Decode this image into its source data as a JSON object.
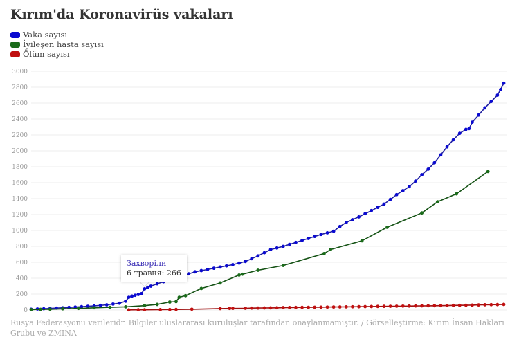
{
  "chart_data": {
    "type": "line",
    "title": "Kırım'da Koronavirüs vakaları",
    "xlabel": "",
    "ylabel": "",
    "ylim": [
      0,
      3000
    ],
    "xlim": [
      0,
      150
    ],
    "yticks": [
      "0",
      "200",
      "400",
      "600",
      "800",
      "1000",
      "1200",
      "1400",
      "1600",
      "1800",
      "2000",
      "2200",
      "2400",
      "2600",
      "2800",
      "3000"
    ],
    "grid": true,
    "legend_position": "top-left",
    "series": [
      {
        "name": "Vaka sayısı",
        "color": "#0a0ad0",
        "line_color": "#2020a0",
        "points": [
          [
            0,
            10
          ],
          [
            2,
            13
          ],
          [
            4,
            16
          ],
          [
            6,
            20
          ],
          [
            8,
            24
          ],
          [
            10,
            28
          ],
          [
            12,
            32
          ],
          [
            14,
            37
          ],
          [
            16,
            42
          ],
          [
            18,
            47
          ],
          [
            20,
            52
          ],
          [
            22,
            58
          ],
          [
            24,
            65
          ],
          [
            26,
            75
          ],
          [
            28,
            85
          ],
          [
            30,
            110
          ],
          [
            31,
            160
          ],
          [
            32,
            175
          ],
          [
            33,
            185
          ],
          [
            34,
            195
          ],
          [
            35,
            205
          ],
          [
            36,
            266
          ],
          [
            37,
            285
          ],
          [
            38,
            300
          ],
          [
            40,
            330
          ],
          [
            42,
            355
          ],
          [
            44,
            380
          ],
          [
            46,
            405
          ],
          [
            48,
            430
          ],
          [
            50,
            455
          ],
          [
            52,
            480
          ],
          [
            54,
            495
          ],
          [
            56,
            510
          ],
          [
            58,
            525
          ],
          [
            60,
            540
          ],
          [
            62,
            555
          ],
          [
            64,
            570
          ],
          [
            66,
            590
          ],
          [
            68,
            610
          ],
          [
            70,
            645
          ],
          [
            72,
            680
          ],
          [
            74,
            720
          ],
          [
            76,
            760
          ],
          [
            78,
            780
          ],
          [
            80,
            800
          ],
          [
            82,
            825
          ],
          [
            84,
            850
          ],
          [
            86,
            875
          ],
          [
            88,
            900
          ],
          [
            90,
            925
          ],
          [
            92,
            950
          ],
          [
            94,
            970
          ],
          [
            96,
            990
          ],
          [
            98,
            1050
          ],
          [
            100,
            1100
          ],
          [
            102,
            1135
          ],
          [
            104,
            1170
          ],
          [
            106,
            1210
          ],
          [
            108,
            1250
          ],
          [
            110,
            1290
          ],
          [
            112,
            1330
          ],
          [
            114,
            1390
          ],
          [
            116,
            1450
          ],
          [
            118,
            1500
          ],
          [
            120,
            1550
          ],
          [
            122,
            1620
          ],
          [
            124,
            1700
          ],
          [
            126,
            1770
          ],
          [
            128,
            1850
          ],
          [
            130,
            1950
          ],
          [
            132,
            2050
          ],
          [
            134,
            2140
          ],
          [
            136,
            2220
          ],
          [
            138,
            2270
          ],
          [
            139,
            2280
          ],
          [
            140,
            2360
          ],
          [
            142,
            2450
          ],
          [
            144,
            2540
          ],
          [
            146,
            2620
          ],
          [
            148,
            2700
          ],
          [
            149,
            2770
          ],
          [
            150,
            2850
          ]
        ]
      },
      {
        "name": "İyileşen hasta sayısı",
        "color": "#1a6b1a",
        "line_color": "#145214",
        "points": [
          [
            0,
            5
          ],
          [
            3,
            8
          ],
          [
            6,
            10
          ],
          [
            10,
            15
          ],
          [
            15,
            20
          ],
          [
            20,
            28
          ],
          [
            25,
            34
          ],
          [
            30,
            40
          ],
          [
            36,
            55
          ],
          [
            40,
            70
          ],
          [
            44,
            100
          ],
          [
            46,
            105
          ],
          [
            47,
            160
          ],
          [
            49,
            180
          ],
          [
            54,
            270
          ],
          [
            60,
            340
          ],
          [
            66,
            440
          ],
          [
            67,
            450
          ],
          [
            72,
            500
          ],
          [
            80,
            560
          ],
          [
            93,
            710
          ],
          [
            95,
            760
          ],
          [
            105,
            870
          ],
          [
            113,
            1040
          ],
          [
            124,
            1220
          ],
          [
            129,
            1360
          ],
          [
            135,
            1460
          ],
          [
            145,
            1740
          ]
        ]
      },
      {
        "name": "Ölüm sayısı",
        "color": "#c01010",
        "line_color": "#a01010",
        "points": [
          [
            31,
            2
          ],
          [
            34,
            3
          ],
          [
            36,
            3
          ],
          [
            41,
            5
          ],
          [
            44,
            6
          ],
          [
            46,
            7
          ],
          [
            51,
            10
          ],
          [
            60,
            18
          ],
          [
            63,
            20
          ],
          [
            64,
            20
          ],
          [
            68,
            22
          ],
          [
            70,
            24
          ],
          [
            72,
            25
          ],
          [
            74,
            26
          ],
          [
            76,
            27
          ],
          [
            78,
            28
          ],
          [
            80,
            30
          ],
          [
            82,
            31
          ],
          [
            84,
            32
          ],
          [
            86,
            33
          ],
          [
            88,
            34
          ],
          [
            90,
            35
          ],
          [
            92,
            36
          ],
          [
            94,
            37
          ],
          [
            96,
            38
          ],
          [
            98,
            39
          ],
          [
            100,
            40
          ],
          [
            102,
            41
          ],
          [
            104,
            42
          ],
          [
            106,
            43
          ],
          [
            108,
            44
          ],
          [
            110,
            45
          ],
          [
            112,
            46
          ],
          [
            114,
            47
          ],
          [
            116,
            48
          ],
          [
            118,
            49
          ],
          [
            120,
            50
          ],
          [
            122,
            51
          ],
          [
            124,
            52
          ],
          [
            126,
            53
          ],
          [
            128,
            54
          ],
          [
            130,
            55
          ],
          [
            132,
            56
          ],
          [
            134,
            58
          ],
          [
            136,
            59
          ],
          [
            138,
            60
          ],
          [
            140,
            62
          ],
          [
            142,
            64
          ],
          [
            144,
            66
          ],
          [
            146,
            67
          ],
          [
            148,
            68
          ],
          [
            150,
            70
          ]
        ]
      }
    ],
    "annotation": {
      "series": "Vaka sayısı",
      "x": 36,
      "title": "Захворіли",
      "label": "6 травня:",
      "value": "266"
    }
  },
  "source": "Rusya Federasyonu verileridr. Bilgiler uluslararası kuruluşlar tarafından onaylanmamıştır. / Görselleştirme: Kırım İnsan Hakları Grubu ve ZMINA"
}
